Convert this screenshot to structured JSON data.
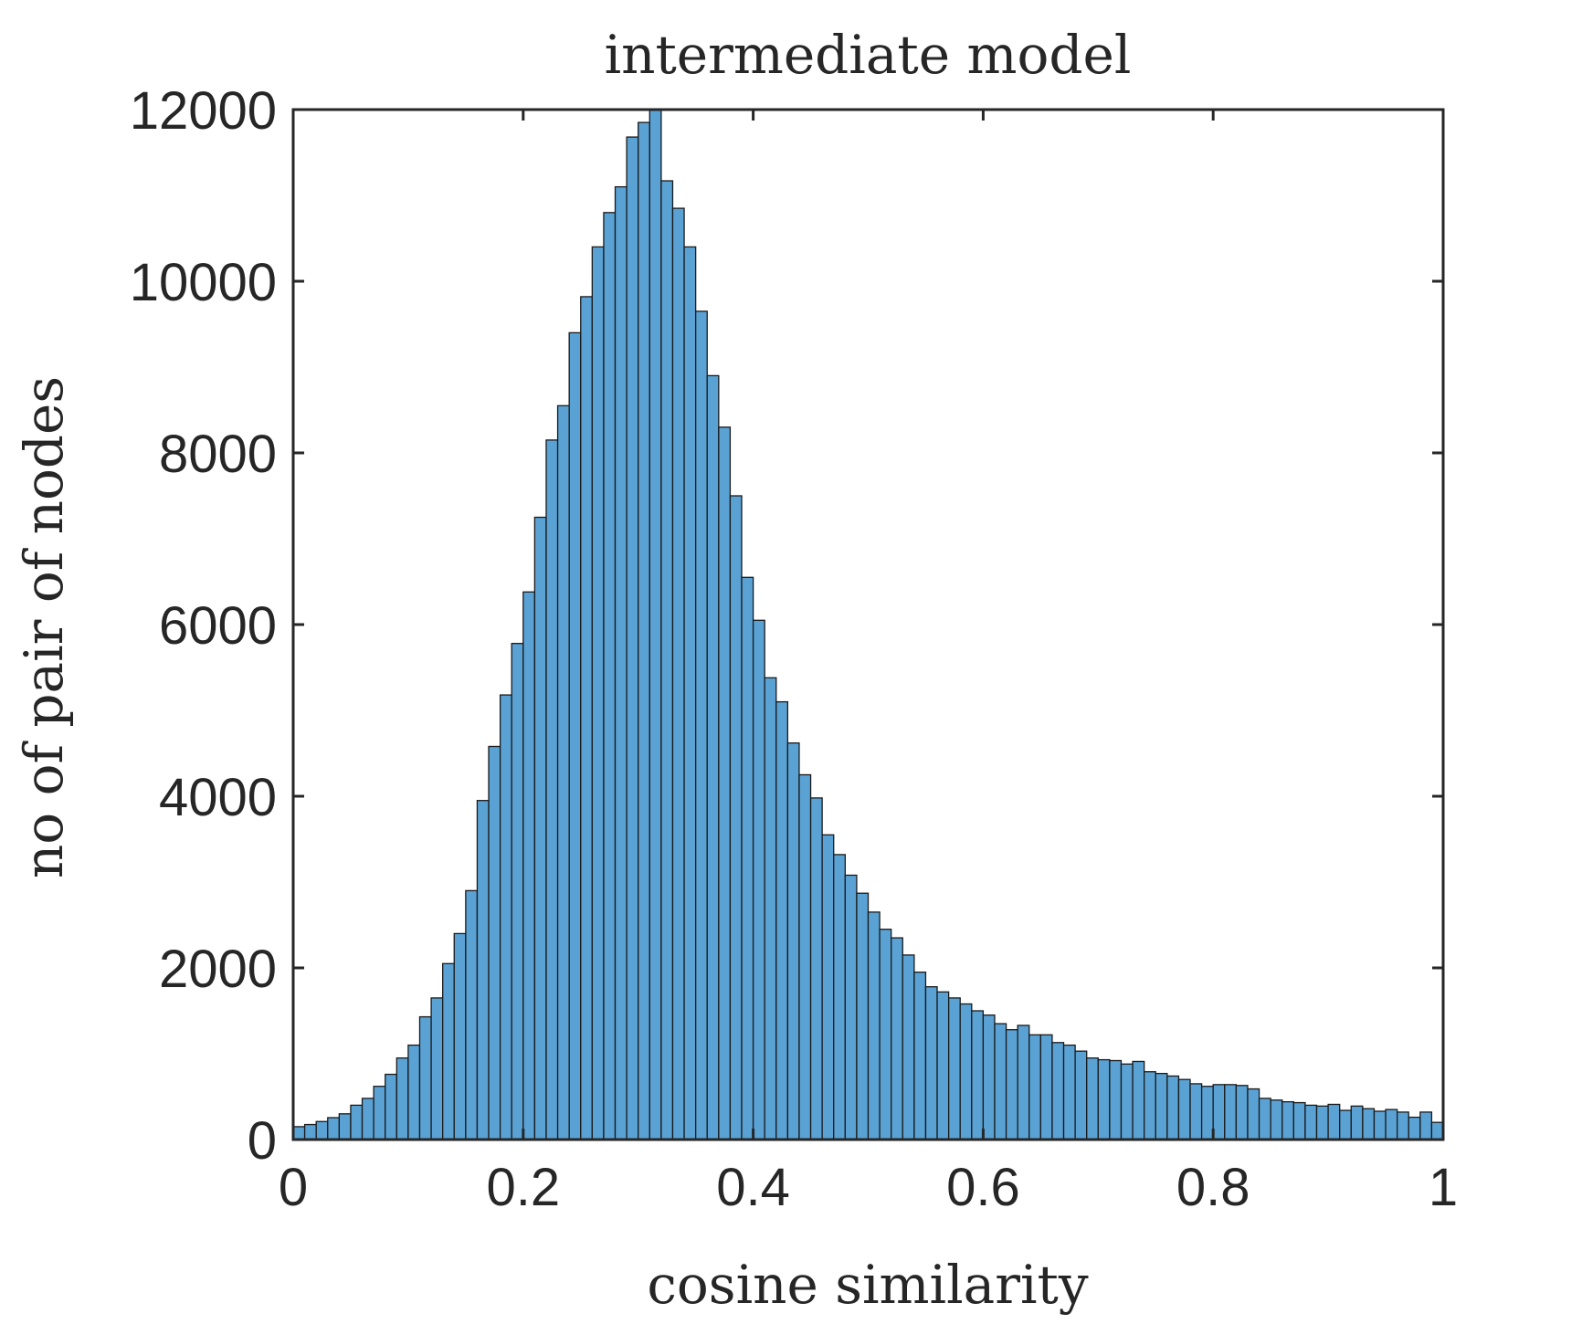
{
  "chart_data": {
    "type": "bar",
    "title": "intermediate model",
    "xlabel": "cosine similarity",
    "ylabel": "no of pair of nodes",
    "xlim": [
      0,
      1
    ],
    "ylim": [
      0,
      12000
    ],
    "xticks": [
      "0",
      "0.2",
      "0.4",
      "0.6",
      "0.8",
      "1"
    ],
    "yticks": [
      "0",
      "2000",
      "4000",
      "6000",
      "8000",
      "10000",
      "12000"
    ],
    "bin_width": 0.01,
    "bar_color": "#5aa2d4",
    "edge_color": "#1a1a1a",
    "grid": false,
    "values": [
      150,
      175,
      210,
      255,
      300,
      400,
      480,
      620,
      760,
      950,
      1100,
      1430,
      1650,
      2050,
      2400,
      2900,
      3950,
      4580,
      5180,
      5780,
      6380,
      7250,
      8150,
      8550,
      9400,
      9820,
      10400,
      10800,
      11100,
      11680,
      11850,
      12000,
      11170,
      10850,
      10400,
      9650,
      8900,
      8300,
      7500,
      6550,
      6050,
      5380,
      5100,
      4620,
      4250,
      3980,
      3550,
      3320,
      3080,
      2870,
      2650,
      2450,
      2350,
      2150,
      1950,
      1780,
      1720,
      1650,
      1580,
      1500,
      1450,
      1350,
      1280,
      1330,
      1220,
      1220,
      1130,
      1100,
      1030,
      950,
      930,
      920,
      880,
      910,
      790,
      770,
      740,
      700,
      650,
      620,
      640,
      640,
      630,
      590,
      480,
      460,
      440,
      430,
      400,
      390,
      410,
      340,
      390,
      360,
      330,
      350,
      320,
      260,
      320,
      200
    ]
  }
}
